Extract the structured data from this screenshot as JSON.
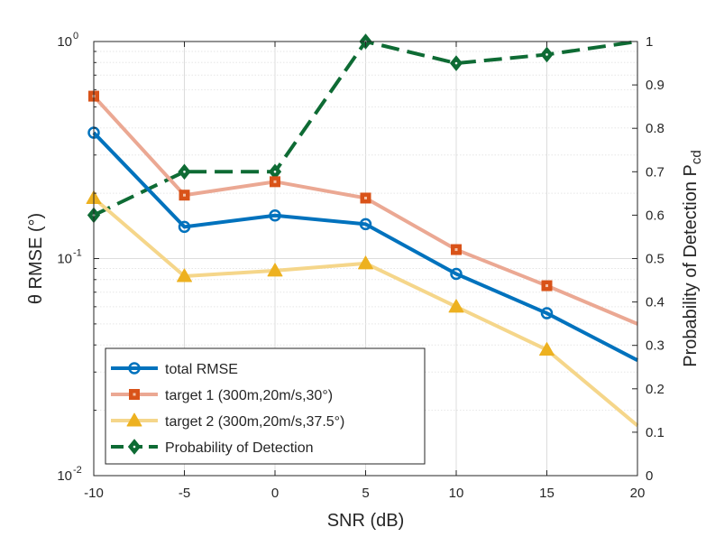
{
  "chart_data": {
    "type": "line",
    "title": "",
    "xlabel": "SNR (dB)",
    "ylabel_left": "θ RMSE (°)",
    "ylabel_right_main": "Probability of Detection P",
    "ylabel_right_sub": "cd",
    "x": [
      -10,
      -5,
      0,
      5,
      10,
      15,
      20
    ],
    "xlim": [
      -10,
      20
    ],
    "xticks": [
      "-10",
      "-5",
      "0",
      "5",
      "10",
      "15",
      "20"
    ],
    "ylim_left": [
      0.01,
      1
    ],
    "yscale_left": "log",
    "yticks_left": [
      {
        "base": "10",
        "exp": "0",
        "value": 1
      },
      {
        "base": "10",
        "exp": "-1",
        "value": 0.1
      },
      {
        "base": "10",
        "exp": "-2",
        "value": 0.01
      }
    ],
    "ylim_right": [
      0,
      1
    ],
    "yticks_right": [
      "0",
      "0.1",
      "0.2",
      "0.3",
      "0.4",
      "0.5",
      "0.6",
      "0.7",
      "0.8",
      "0.9",
      "1"
    ],
    "grid": true,
    "legend_position": "bottom-left",
    "series": [
      {
        "name": "total RMSE",
        "axis": "left",
        "color": "#0072BD",
        "marker": "circle",
        "dash": false,
        "values": [
          0.38,
          0.14,
          0.158,
          0.144,
          0.085,
          0.056,
          0.034
        ]
      },
      {
        "name": "target 1 (300m,20m/s,30°)",
        "axis": "left",
        "color": "#EBA893",
        "marker_color": "#D95319",
        "marker": "square",
        "dash": false,
        "values": [
          0.56,
          0.196,
          0.226,
          0.19,
          0.11,
          0.075,
          0.05
        ]
      },
      {
        "name": "target 2 (300m,20m/s,37.5°)",
        "axis": "left",
        "color": "#F5D68A",
        "marker_color": "#EDB120",
        "marker": "triangle",
        "dash": false,
        "values": [
          0.19,
          0.083,
          0.088,
          0.095,
          0.06,
          0.038,
          0.017
        ]
      },
      {
        "name": "Probability of Detection",
        "axis": "right",
        "color": "#0E6B34",
        "marker": "diamond",
        "dash": true,
        "values": [
          0.6,
          0.7,
          0.7,
          1.0,
          0.95,
          0.97,
          1.0
        ]
      }
    ]
  }
}
